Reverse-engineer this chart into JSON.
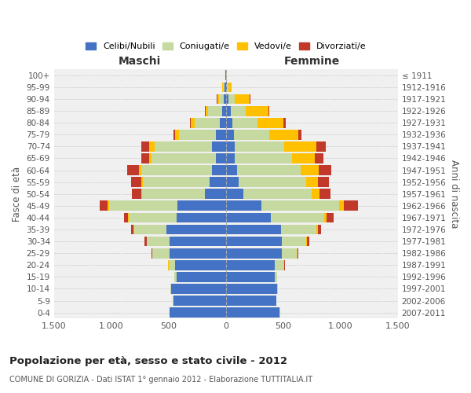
{
  "age_groups": [
    "0-4",
    "5-9",
    "10-14",
    "15-19",
    "20-24",
    "25-29",
    "30-34",
    "35-39",
    "40-44",
    "45-49",
    "50-54",
    "55-59",
    "60-64",
    "65-69",
    "70-74",
    "75-79",
    "80-84",
    "85-89",
    "90-94",
    "95-99",
    "100+"
  ],
  "birth_years": [
    "2007-2011",
    "2002-2006",
    "1997-2001",
    "1992-1996",
    "1987-1991",
    "1982-1986",
    "1977-1981",
    "1972-1976",
    "1967-1971",
    "1962-1966",
    "1957-1961",
    "1952-1956",
    "1947-1951",
    "1942-1946",
    "1937-1941",
    "1932-1936",
    "1927-1931",
    "1922-1926",
    "1917-1921",
    "1912-1916",
    "≤ 1911"
  ],
  "males": {
    "celibi": [
      490,
      460,
      480,
      430,
      440,
      490,
      490,
      520,
      430,
      420,
      180,
      145,
      120,
      90,
      120,
      90,
      55,
      35,
      20,
      10,
      5
    ],
    "coniugati": [
      2,
      2,
      5,
      20,
      60,
      150,
      200,
      280,
      420,
      600,
      550,
      580,
      620,
      560,
      500,
      320,
      220,
      120,
      40,
      15,
      3
    ],
    "vedovi": [
      0,
      0,
      0,
      0,
      2,
      2,
      2,
      5,
      5,
      10,
      10,
      10,
      20,
      20,
      50,
      35,
      30,
      20,
      15,
      5,
      0
    ],
    "divorziati": [
      0,
      0,
      0,
      0,
      5,
      5,
      15,
      20,
      30,
      70,
      80,
      90,
      100,
      70,
      70,
      15,
      10,
      10,
      5,
      0,
      0
    ]
  },
  "females": {
    "nubili": [
      470,
      440,
      450,
      430,
      430,
      490,
      490,
      480,
      390,
      310,
      150,
      110,
      100,
      75,
      80,
      70,
      55,
      40,
      25,
      10,
      5
    ],
    "coniugate": [
      2,
      2,
      5,
      20,
      80,
      130,
      210,
      310,
      470,
      680,
      600,
      590,
      550,
      500,
      430,
      310,
      220,
      130,
      55,
      10,
      2
    ],
    "vedove": [
      0,
      0,
      0,
      0,
      2,
      5,
      5,
      10,
      20,
      40,
      70,
      100,
      160,
      200,
      280,
      250,
      230,
      200,
      130,
      30,
      2
    ],
    "divorziate": [
      0,
      0,
      0,
      0,
      5,
      10,
      20,
      30,
      60,
      120,
      90,
      100,
      110,
      75,
      80,
      30,
      20,
      10,
      5,
      0,
      0
    ]
  },
  "colors": {
    "celibi_nubili": "#4472c4",
    "coniugati": "#c5d9a0",
    "vedovi": "#ffc000",
    "divorziati": "#c0392b"
  },
  "xlim": 1500,
  "title": "Popolazione per età, sesso e stato civile - 2012",
  "subtitle": "COMUNE DI GORIZIA - Dati ISTAT 1° gennaio 2012 - Elaborazione TUTTITALIA.IT",
  "xlabel_left": "Maschi",
  "xlabel_right": "Femmine",
  "ylabel_left": "Fasce di età",
  "ylabel_right": "Anni di nascita",
  "bg_color": "#ffffff",
  "plot_bg": "#f0f0f0",
  "grid_color": "#cccccc",
  "xticks": [
    -1500,
    -1000,
    -500,
    0,
    500,
    1000,
    1500
  ],
  "xtick_labels": [
    "1.500",
    "1.000",
    "500",
    "0",
    "500",
    "1.000",
    "1.500"
  ]
}
